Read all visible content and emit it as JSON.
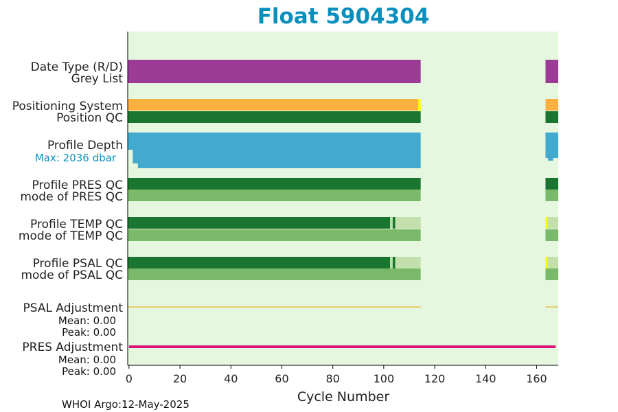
{
  "chart_data": {
    "type": "bar",
    "title": "Float 5904304",
    "xlabel": "Cycle Number",
    "xlim": [
      -0.5,
      168.5
    ],
    "xticks": [
      0,
      20,
      40,
      60,
      80,
      100,
      120,
      140,
      160
    ],
    "footer": "WHOI Argo:12-May-2025",
    "colors": {
      "background": "#e5f7df",
      "purple": "#9b3b96",
      "orange": "#fbb040",
      "yellow": "#ffff00",
      "dark_green": "#1a7530",
      "mid_green": "#7ab96a",
      "light_green": "#c3e0ac",
      "blue": "#42aace",
      "thin_orange": "#e9a000",
      "magenta": "#dd1477"
    },
    "rows": [
      {
        "labels": [
          "Date Type (R/D)",
          "Grey List"
        ],
        "bars": [
          {
            "color": "purple",
            "segments": [
              [
                -0.5,
                114.5
              ],
              [
                163.5,
                168.5
              ]
            ]
          }
        ]
      },
      {
        "labels": [
          "Positioning System",
          "Position QC"
        ],
        "bars": [
          {
            "color": "orange",
            "segments": [
              [
                -0.5,
                113.5
              ],
              [
                163.5,
                168.5
              ]
            ],
            "marks": [
              {
                "x": [
                  113.5,
                  114.5
                ],
                "color": "yellow"
              }
            ]
          },
          {
            "color": "dark_green",
            "segments": [
              [
                -0.5,
                114.5
              ],
              [
                163.5,
                168.5
              ]
            ]
          }
        ]
      },
      {
        "labels": [
          "Profile Depth"
        ],
        "sublabel": "Max: 2036 dbar",
        "max_depth_dbar": 2036
      },
      {
        "labels": [
          "Profile PRES QC",
          "mode of PRES QC"
        ],
        "bars": [
          {
            "color": "dark_green",
            "segments": [
              [
                -0.5,
                114.5
              ],
              [
                163.5,
                168.5
              ]
            ]
          },
          {
            "color": "mid_green",
            "segments": [
              [
                -0.5,
                114.5
              ],
              [
                163.5,
                168.5
              ]
            ]
          }
        ]
      },
      {
        "labels": [
          "Profile TEMP QC",
          "mode of TEMP QC"
        ],
        "bars": [
          {
            "color": "dark_green",
            "segments": [
              [
                -0.5,
                102.5
              ],
              [
                103.5,
                104.5
              ]
            ],
            "light": [
              [
                102.5,
                103.5
              ],
              [
                104.5,
                114.5
              ],
              [
                163.5,
                168.5
              ]
            ],
            "marks": [
              {
                "x": [
                  163.5,
                  164.3
                ],
                "color": "yellow"
              }
            ]
          },
          {
            "color": "mid_green",
            "segments": [
              [
                -0.5,
                114.5
              ],
              [
                163.5,
                168.5
              ]
            ]
          }
        ]
      },
      {
        "labels": [
          "Profile PSAL QC",
          "mode of PSAL QC"
        ],
        "bars": [
          {
            "color": "dark_green",
            "segments": [
              [
                -0.5,
                102.5
              ],
              [
                103.5,
                104.5
              ]
            ],
            "light": [
              [
                102.5,
                103.5
              ],
              [
                104.5,
                114.5
              ],
              [
                163.5,
                168.5
              ]
            ],
            "marks": [
              {
                "x": [
                  163.5,
                  164.3
                ],
                "color": "yellow"
              }
            ]
          },
          {
            "color": "mid_green",
            "segments": [
              [
                -0.5,
                114.5
              ],
              [
                163.5,
                168.5
              ]
            ]
          }
        ]
      },
      {
        "labels": [
          "PSAL Adjustment"
        ],
        "stats": [
          "Mean: 0.00",
          "Peak: 0.00"
        ],
        "line": {
          "color": "thin_orange",
          "segments": [
            [
              -0.5,
              114.5
            ],
            [
              163.5,
              168.5
            ]
          ]
        }
      },
      {
        "labels": [
          "PRES Adjustment"
        ],
        "stats": [
          "Mean: 0.00",
          "Peak: 0.00"
        ],
        "line": {
          "color": "magenta",
          "segments": [
            [
              0,
              167.5
            ]
          ]
        }
      }
    ]
  }
}
